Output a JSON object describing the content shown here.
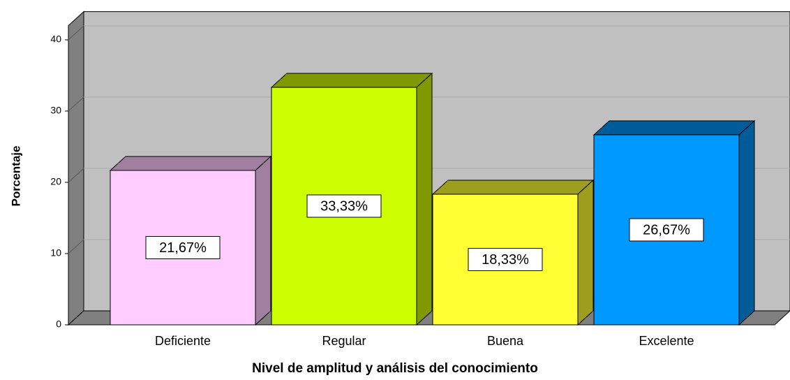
{
  "chart_data": {
    "type": "bar3d",
    "categories": [
      "Deficiente",
      "Regular",
      "Buena",
      "Excelente"
    ],
    "values": [
      21.67,
      33.33,
      18.33,
      26.67
    ],
    "value_labels": [
      "21,67%",
      "33,33%",
      "18,33%",
      "26,67%"
    ],
    "colors": [
      "#ffccff",
      "#ccff00",
      "#ffff33",
      "#0099ff"
    ],
    "side_colors": [
      "#a07fa0",
      "#809900",
      "#9e9e1e",
      "#005c99"
    ],
    "x_label": "Nivel de amplitud y análisis del conocimiento",
    "y_label": "Porcentaje",
    "ylim": [
      0,
      42
    ],
    "yticks": [
      0,
      10,
      20,
      30,
      40
    ],
    "grid": true
  }
}
